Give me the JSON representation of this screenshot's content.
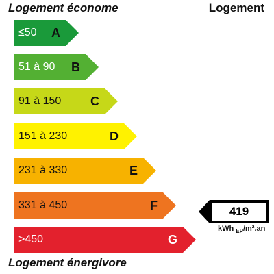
{
  "header": {
    "left": "Logement économe",
    "right": "Logement"
  },
  "footer": {
    "label": "Logement énergivore"
  },
  "classes": [
    {
      "letter": "A",
      "range": "≤50",
      "color": "#1a9a3a"
    },
    {
      "letter": "B",
      "range": "51 à 90",
      "color": "#53b033"
    },
    {
      "letter": "C",
      "range": "91 à 150",
      "color": "#c6d818"
    },
    {
      "letter": "D",
      "range": "151 à 230",
      "color": "#fff200"
    },
    {
      "letter": "E",
      "range": "231 à 330",
      "color": "#f7b200"
    },
    {
      "letter": "F",
      "range": "331 à 450",
      "color": "#ee7420"
    },
    {
      "letter": "G",
      "range": ">450",
      "color": "#e3212d"
    }
  ],
  "rating": {
    "value": "419",
    "class": "F",
    "unit_main": "kWh",
    "unit_sub": "EP",
    "unit_tail": "/m².an"
  }
}
